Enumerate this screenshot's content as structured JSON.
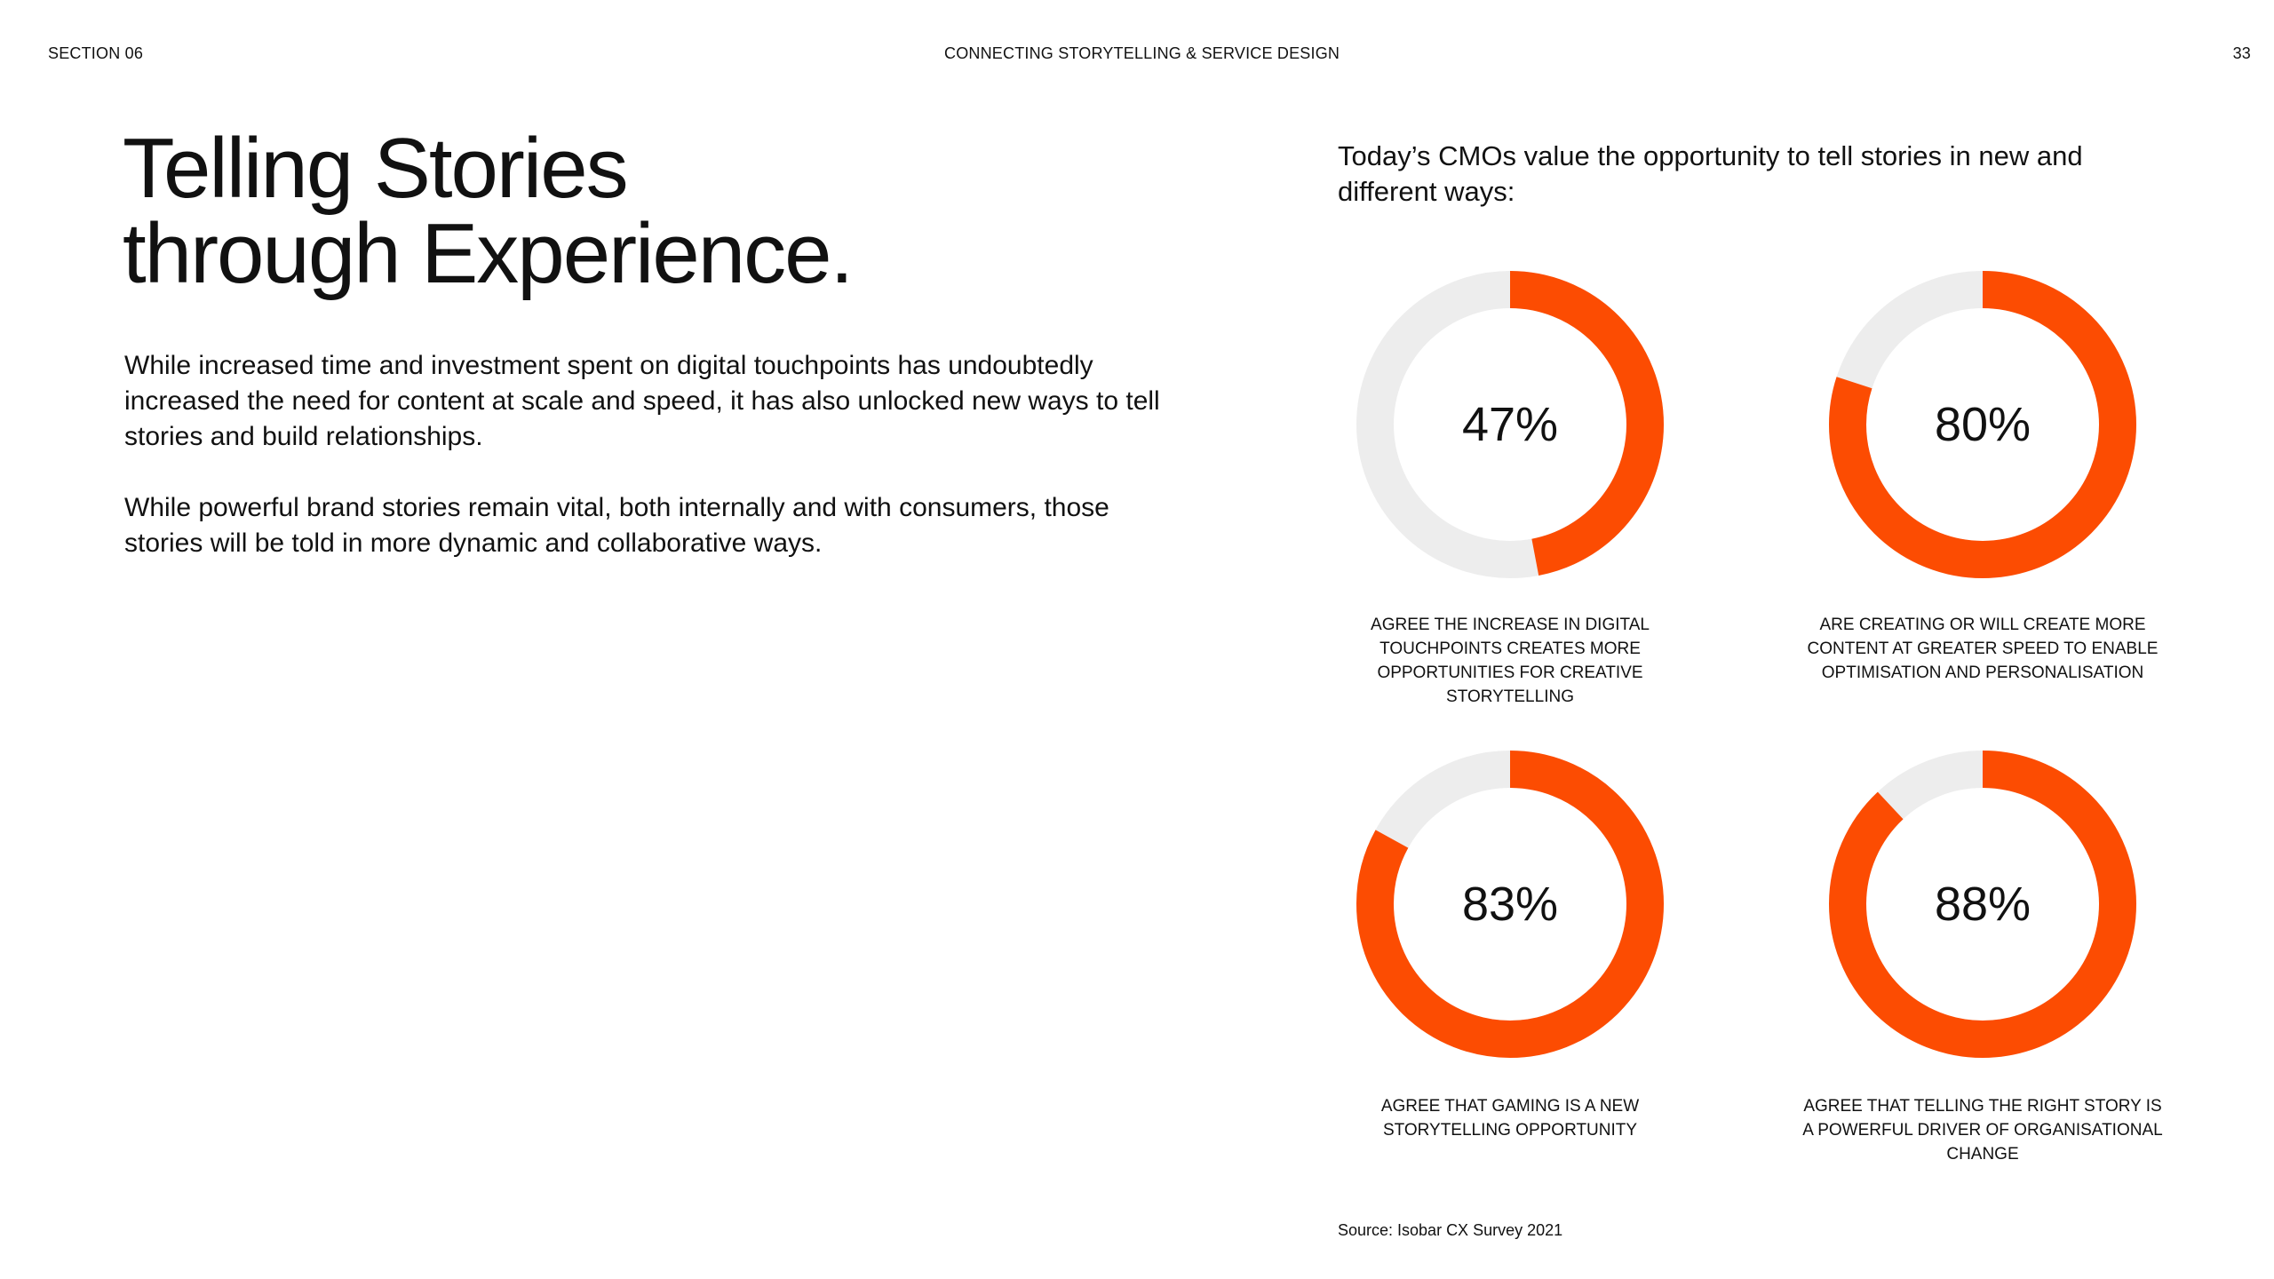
{
  "header": {
    "section": "SECTION 06",
    "title": "CONNECTING STORYTELLING & SERVICE DESIGN",
    "page_number": "33"
  },
  "main": {
    "title_line1": "Telling Stories",
    "title_line2": "through Experience.",
    "paragraph1": "While increased time and investment spent on digital touchpoints has undoubtedly increased the need for content at scale and speed, it has also unlocked new ways to tell stories and build relationships.",
    "paragraph2": "While powerful brand stories remain vital, both internally and with consumers, those stories will be told in more dynamic and collaborative ways."
  },
  "lead": "Today’s CMOs value the opportunity to tell stories in new and different ways:",
  "colors": {
    "accent": "#FC4C02",
    "track": "#EDEDED"
  },
  "chart_data": [
    {
      "type": "pie",
      "variant": "donut",
      "value": 47,
      "max": 100,
      "label": "47%",
      "caption": "AGREE THE INCREASE IN DIGITAL TOUCHPOINTS CREATES MORE OPPORTUNITIES FOR CREATIVE STORYTELLING"
    },
    {
      "type": "pie",
      "variant": "donut",
      "value": 80,
      "max": 100,
      "label": "80%",
      "caption": "ARE CREATING OR WILL CREATE MORE CONTENT AT GREATER SPEED TO ENABLE OPTIMISATION AND PERSONALISATION"
    },
    {
      "type": "pie",
      "variant": "donut",
      "value": 83,
      "max": 100,
      "label": "83%",
      "caption": "AGREE THAT GAMING IS A NEW STORYTELLING OPPORTUNITY"
    },
    {
      "type": "pie",
      "variant": "donut",
      "value": 88,
      "max": 100,
      "label": "88%",
      "caption": "AGREE THAT TELLING THE RIGHT STORY IS A POWERFUL DRIVER OF ORGANISATIONAL CHANGE"
    }
  ],
  "source": "Source: Isobar CX Survey 2021"
}
